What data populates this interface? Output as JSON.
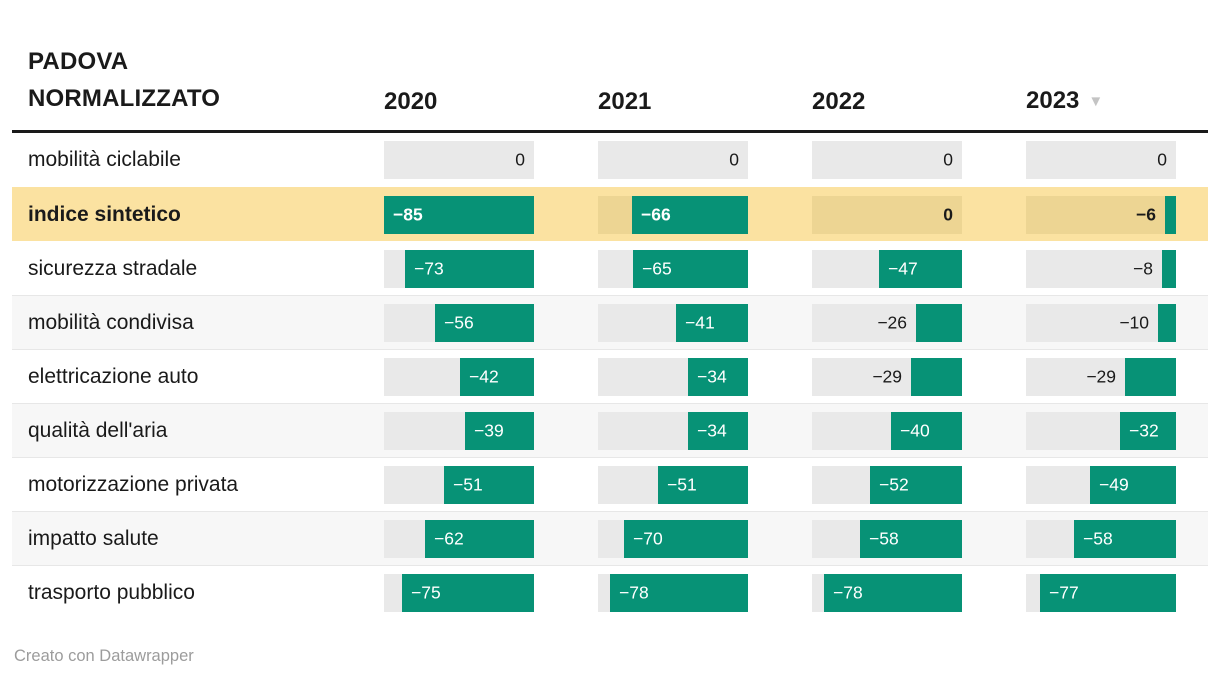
{
  "chart_data": {
    "type": "table",
    "title": "PADOVA\nNORMALIZZATO",
    "columns": [
      "2020",
      "2021",
      "2022",
      "2023"
    ],
    "sorted_column": "2023",
    "sort_direction": "descending",
    "scale_max": 85,
    "rows": [
      {
        "label": "mobilità ciclabile",
        "values": [
          0,
          0,
          0,
          0
        ],
        "highlight": false
      },
      {
        "label": "indice sintetico",
        "values": [
          -85,
          -66,
          0,
          -6
        ],
        "highlight": true
      },
      {
        "label": "sicurezza stradale",
        "values": [
          -73,
          -65,
          -47,
          -8
        ],
        "highlight": false
      },
      {
        "label": "mobilità condivisa",
        "values": [
          -56,
          -41,
          -26,
          -10
        ],
        "highlight": false
      },
      {
        "label": "elettricazione auto",
        "values": [
          -42,
          -34,
          -29,
          -29
        ],
        "highlight": false
      },
      {
        "label": "qualità dell'aria",
        "values": [
          -39,
          -34,
          -40,
          -32
        ],
        "highlight": false
      },
      {
        "label": "motorizzazione privata",
        "values": [
          -51,
          -51,
          -52,
          -49
        ],
        "highlight": false
      },
      {
        "label": "impatto salute",
        "values": [
          -62,
          -70,
          -58,
          -58
        ],
        "highlight": false
      },
      {
        "label": "trasporto pubblico",
        "values": [
          -75,
          -78,
          -78,
          -77
        ],
        "highlight": false
      }
    ]
  },
  "icons": {
    "sort_descending": "▼"
  },
  "colors": {
    "bar_green": "#079276",
    "track_gray": "#e9e9e9",
    "highlight_row": "#fbe2a1",
    "highlight_track": "#edd593",
    "stripe_gray": "#f7f7f7",
    "text_dark": "#1a1a1a",
    "footer_gray": "#9c9c9c"
  },
  "footer": {
    "credit": "Creato con Datawrapper"
  }
}
